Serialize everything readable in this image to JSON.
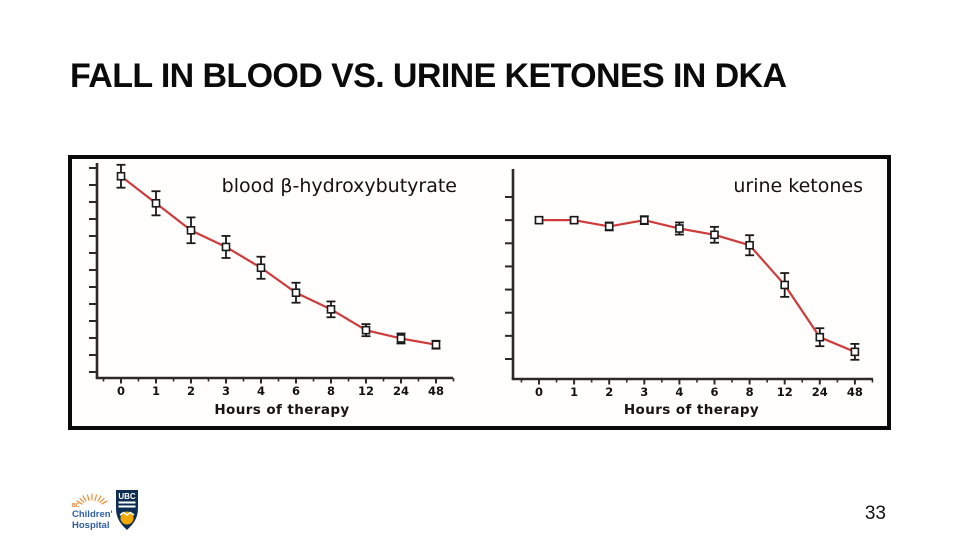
{
  "slide": {
    "title": "FALL IN BLOOD VS. URINE KETONES IN DKA",
    "page_number": "33"
  },
  "footer": {
    "bcch_line1": "BC",
    "bcch_line2": "Children's",
    "bcch_line3": "Hospital",
    "ubc_text": "UBC"
  },
  "colors": {
    "line_red": "#cf3b3b",
    "axis": "#2a2a2a",
    "marker_fill": "#ffffff",
    "marker_stroke": "#1a1a1a",
    "frame": "#0a0a0a",
    "text": "#121212",
    "bcch_orange": "#f58220",
    "bcch_blue": "#2e5fa3",
    "ubc_navy": "#0f2d52",
    "ubc_gold": "#f2a900"
  },
  "chart_data": [
    {
      "type": "line",
      "label": "blood β-hydroxybutyrate",
      "xlabel": "Hours of therapy",
      "categories": [
        "0",
        "1",
        "2",
        "3",
        "4",
        "6",
        "8",
        "12",
        "24",
        "48"
      ],
      "values": [
        0.97,
        0.84,
        0.71,
        0.63,
        0.53,
        0.41,
        0.33,
        0.23,
        0.19,
        0.16
      ],
      "errors": [
        0.055,
        0.058,
        0.062,
        0.053,
        0.053,
        0.048,
        0.038,
        0.029,
        0.024,
        0.019
      ],
      "ylim": [
        0,
        1
      ],
      "y_tick_labels": "none (unlabeled axis)",
      "y_tick_count": 13,
      "x_minor_ticks": true,
      "grid": false,
      "marker": "open-square",
      "error_bars": true,
      "line_color": "#cf3b3b",
      "label_position": "top-right-inside"
    },
    {
      "type": "line",
      "label": "urine ketones",
      "xlabel": "Hours of therapy",
      "categories": [
        "0",
        "1",
        "2",
        "3",
        "4",
        "6",
        "8",
        "12",
        "24",
        "48"
      ],
      "values": [
        0.76,
        0.76,
        0.73,
        0.76,
        0.72,
        0.69,
        0.64,
        0.45,
        0.2,
        0.13
      ],
      "errors": [
        0.014,
        0.014,
        0.019,
        0.019,
        0.029,
        0.038,
        0.048,
        0.057,
        0.043,
        0.038
      ],
      "ylim": [
        0,
        1
      ],
      "y_tick_labels": "none (unlabeled axis)",
      "y_tick_count": 8,
      "x_minor_ticks": true,
      "grid": false,
      "marker": "open-square",
      "error_bars": true,
      "line_color": "#cf3b3b",
      "label_position": "top-right-inside"
    }
  ]
}
